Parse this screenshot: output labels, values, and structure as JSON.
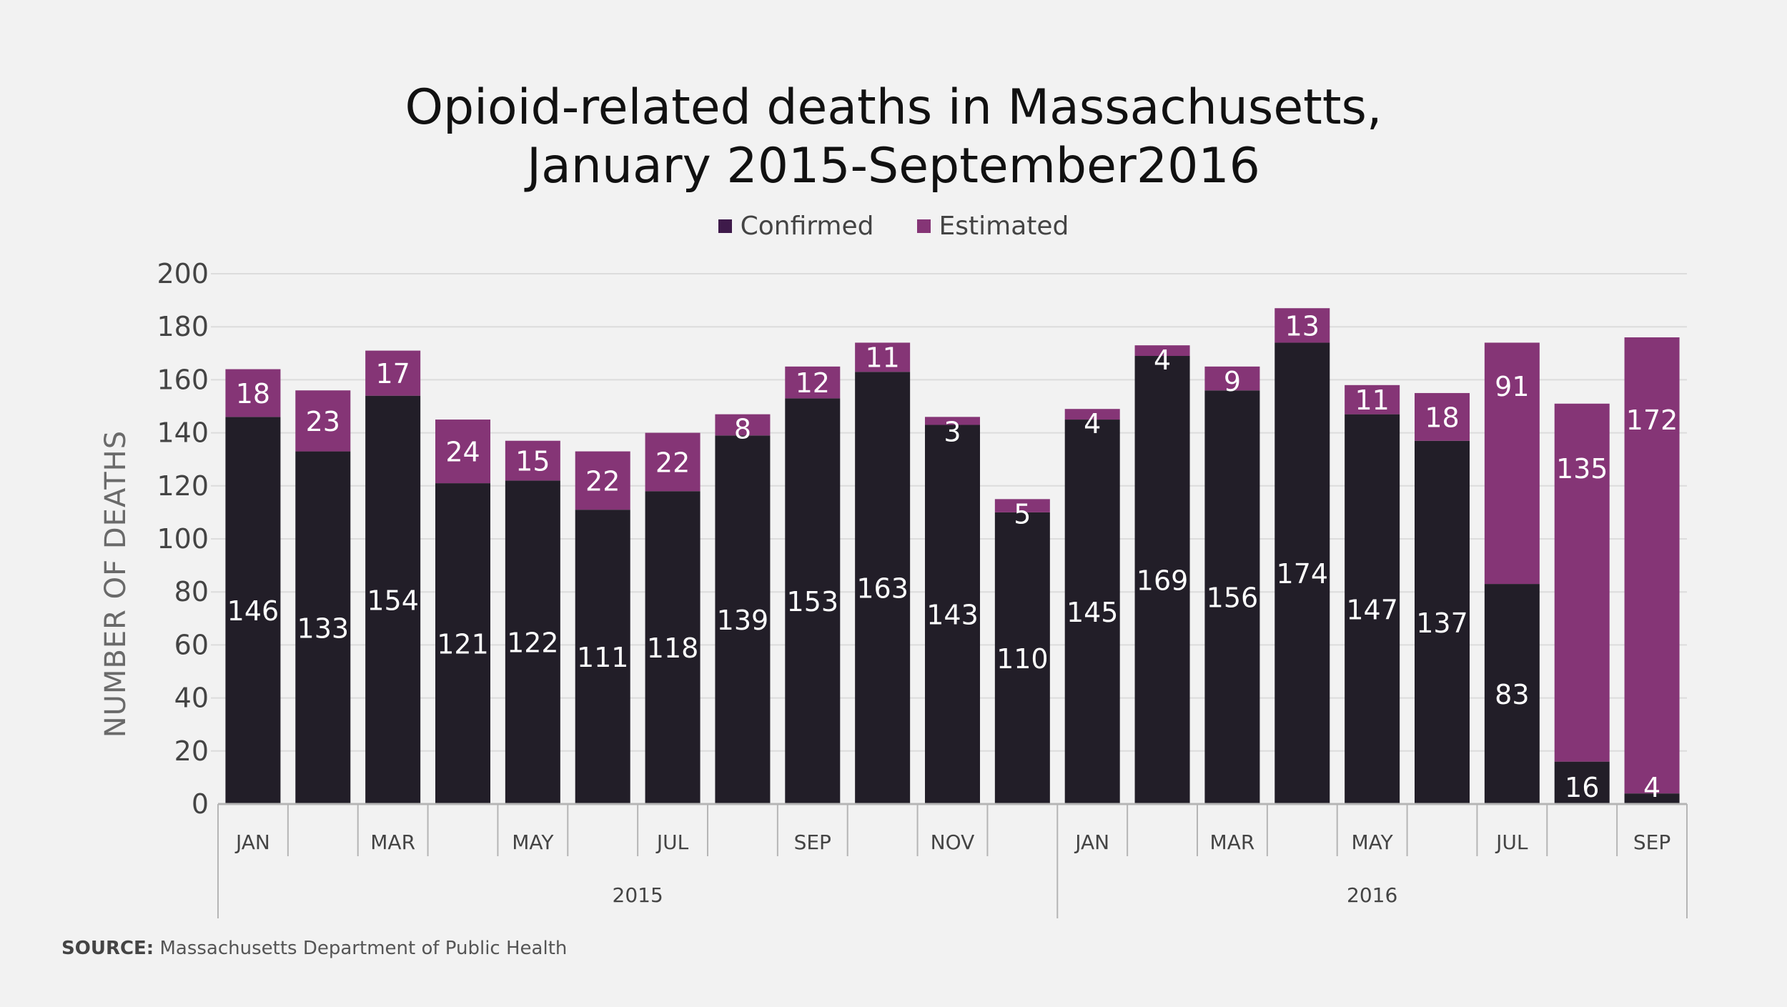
{
  "title_line1": "Opioid-related deaths in Massachusetts,",
  "title_line2": "January 2015-September2016",
  "legend": [
    {
      "label": "Confirmed",
      "color": "#3e1a4a"
    },
    {
      "label": "Estimated",
      "color": "#853576"
    }
  ],
  "ylabel": "NUMBER OF DEATHS",
  "source_label": "SOURCE:",
  "source_text": "Massachusetts Department of Public Health",
  "colors": {
    "confirmed": "#221e28",
    "estimated": "#853576",
    "grid": "#dcdcdc",
    "axis": "#b5b5b5",
    "tick_text": "#444444",
    "bar_label": "#ffffff"
  },
  "chart_data": {
    "type": "bar",
    "stacked": true,
    "title": "Opioid-related deaths in Massachusetts, January 2015-September2016",
    "ylabel": "NUMBER OF DEATHS",
    "ylim": [
      0,
      200
    ],
    "yticks": [
      0,
      20,
      40,
      60,
      80,
      100,
      120,
      140,
      160,
      180,
      200
    ],
    "grid": true,
    "legend_position": "top-center",
    "categories": [
      "2015-01",
      "2015-02",
      "2015-03",
      "2015-04",
      "2015-05",
      "2015-06",
      "2015-07",
      "2015-08",
      "2015-09",
      "2015-10",
      "2015-11",
      "2015-12",
      "2016-01",
      "2016-02",
      "2016-03",
      "2016-04",
      "2016-05",
      "2016-06",
      "2016-07",
      "2016-08",
      "2016-09"
    ],
    "month_tick_labels": [
      "JAN",
      "",
      "MAR",
      "",
      "MAY",
      "",
      "JUL",
      "",
      "SEP",
      "",
      "NOV",
      "",
      "JAN",
      "",
      "MAR",
      "",
      "MAY",
      "",
      "JUL",
      "",
      "SEP"
    ],
    "year_groups": [
      {
        "label": "2015",
        "months": 12
      },
      {
        "label": "2016",
        "months": 9
      }
    ],
    "series": [
      {
        "name": "Confirmed",
        "values": [
          146,
          133,
          154,
          121,
          122,
          111,
          118,
          139,
          153,
          163,
          143,
          110,
          145,
          169,
          156,
          174,
          147,
          137,
          83,
          16,
          4
        ]
      },
      {
        "name": "Estimated",
        "values": [
          18,
          23,
          17,
          24,
          15,
          22,
          22,
          8,
          12,
          11,
          3,
          5,
          4,
          4,
          9,
          13,
          11,
          18,
          91,
          135,
          172
        ]
      }
    ]
  }
}
